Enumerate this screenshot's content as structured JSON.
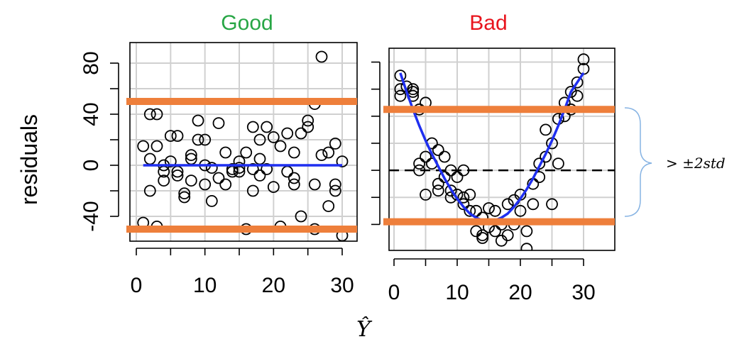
{
  "ylabel": "residuals",
  "xlabel": "Ŷ",
  "annotation": "> ±2std",
  "colors": {
    "good": "#27a645",
    "bad": "#e8141d",
    "band": "#ee7f3b",
    "fit": "#1f2ff0",
    "grid": "#d0d0d0"
  },
  "chart_data": [
    {
      "type": "scatter",
      "title": "Good",
      "xlim": [
        0,
        30
      ],
      "ylim": [
        -55,
        85
      ],
      "x_ticks": [
        "0",
        "10",
        "20",
        "30"
      ],
      "y_ticks": [
        "-40",
        "0",
        "40",
        "80"
      ],
      "y_tick_values": [
        -40,
        0,
        40,
        80
      ],
      "y_minor_ticks": [
        -20,
        20,
        60
      ],
      "bands": [
        50,
        -50
      ],
      "fit": {
        "x": [
          1,
          30
        ],
        "y": [
          0,
          0
        ]
      },
      "points": [
        [
          1,
          -45
        ],
        [
          1,
          15
        ],
        [
          2,
          40
        ],
        [
          2,
          5
        ],
        [
          2,
          -20
        ],
        [
          3,
          40
        ],
        [
          3,
          -48
        ],
        [
          3,
          15
        ],
        [
          4,
          -5
        ],
        [
          4,
          0
        ],
        [
          4,
          -12
        ],
        [
          5,
          23
        ],
        [
          5,
          3
        ],
        [
          6,
          23
        ],
        [
          6,
          -5
        ],
        [
          6,
          -8
        ],
        [
          7,
          -25
        ],
        [
          7,
          -22
        ],
        [
          8,
          5
        ],
        [
          8,
          8
        ],
        [
          8,
          -12
        ],
        [
          9,
          35
        ],
        [
          9,
          20
        ],
        [
          10,
          20
        ],
        [
          10,
          0
        ],
        [
          10,
          -15
        ],
        [
          11,
          -28
        ],
        [
          11,
          -2
        ],
        [
          12,
          33
        ],
        [
          12,
          -10
        ],
        [
          13,
          10
        ],
        [
          13,
          -15
        ],
        [
          14,
          -5
        ],
        [
          14,
          -3
        ],
        [
          15,
          3
        ],
        [
          15,
          -5
        ],
        [
          15,
          -2
        ],
        [
          16,
          -50
        ],
        [
          16,
          10
        ],
        [
          17,
          -20
        ],
        [
          17,
          30
        ],
        [
          17,
          -3
        ],
        [
          18,
          20
        ],
        [
          18,
          5
        ],
        [
          18,
          -8
        ],
        [
          19,
          -3
        ],
        [
          19,
          30
        ],
        [
          20,
          22
        ],
        [
          20,
          -17
        ],
        [
          21,
          15
        ],
        [
          21,
          -48
        ],
        [
          22,
          25
        ],
        [
          22,
          -5
        ],
        [
          23,
          10
        ],
        [
          23,
          -10
        ],
        [
          23,
          -15
        ],
        [
          24,
          25
        ],
        [
          24,
          -40
        ],
        [
          25,
          30
        ],
        [
          25,
          35
        ],
        [
          26,
          48
        ],
        [
          26,
          -50
        ],
        [
          26,
          -15
        ],
        [
          27,
          85
        ],
        [
          27,
          8
        ],
        [
          28,
          -32
        ],
        [
          28,
          10
        ],
        [
          29,
          -15
        ],
        [
          29,
          -20
        ],
        [
          29,
          17
        ],
        [
          30,
          -55
        ],
        [
          30,
          3
        ]
      ]
    },
    {
      "type": "scatter",
      "title": "Bad",
      "xlim": [
        0,
        30
      ],
      "ylim": [
        -55,
        85
      ],
      "x_ticks": [
        "0",
        "10",
        "20",
        "30"
      ],
      "y_ticks": [],
      "y_tick_values": [
        -40,
        0,
        40,
        80
      ],
      "y_minor_ticks": [
        -20,
        20,
        60
      ],
      "bands": [
        45,
        -38
      ],
      "zero_line": true,
      "fit": {
        "x": [
          1,
          2,
          3,
          4,
          5,
          6,
          7,
          8,
          9,
          10,
          11,
          12,
          13,
          14,
          15,
          16,
          17,
          18,
          19,
          20,
          21,
          22,
          23,
          24,
          25,
          26,
          27,
          28,
          29,
          30
        ],
        "y": [
          72,
          58,
          45,
          33,
          22,
          12,
          3,
          -6,
          -14,
          -21,
          -27,
          -32,
          -35,
          -37,
          -38,
          -37,
          -35,
          -32,
          -27,
          -21,
          -14,
          -6,
          3,
          12,
          22,
          33,
          45,
          58,
          65,
          72
        ]
      },
      "points": [
        [
          1,
          70
        ],
        [
          1,
          60
        ],
        [
          1,
          55
        ],
        [
          2,
          62
        ],
        [
          3,
          58
        ],
        [
          3,
          60
        ],
        [
          3,
          55
        ],
        [
          4,
          5
        ],
        [
          4,
          0
        ],
        [
          4,
          45
        ],
        [
          5,
          50
        ],
        [
          5,
          10
        ],
        [
          5,
          -18
        ],
        [
          6,
          20
        ],
        [
          6,
          5
        ],
        [
          7,
          15
        ],
        [
          7,
          -10
        ],
        [
          7,
          -15
        ],
        [
          8,
          10
        ],
        [
          8,
          -5
        ],
        [
          9,
          0
        ],
        [
          9,
          -15
        ],
        [
          9,
          -20
        ],
        [
          10,
          -18
        ],
        [
          10,
          -5
        ],
        [
          11,
          -20
        ],
        [
          11,
          -25
        ],
        [
          11,
          0
        ],
        [
          12,
          -18
        ],
        [
          12,
          -30
        ],
        [
          13,
          -30
        ],
        [
          13,
          -45
        ],
        [
          14,
          -48
        ],
        [
          14,
          -50
        ],
        [
          14,
          -35
        ],
        [
          15,
          -28
        ],
        [
          15,
          -42
        ],
        [
          16,
          -30
        ],
        [
          16,
          -45
        ],
        [
          17,
          -52
        ],
        [
          17,
          -40
        ],
        [
          18,
          -48
        ],
        [
          18,
          -25
        ],
        [
          19,
          -40
        ],
        [
          19,
          -22
        ],
        [
          20,
          -18
        ],
        [
          20,
          -30
        ],
        [
          21,
          -45
        ],
        [
          21,
          -58
        ],
        [
          22,
          -10
        ],
        [
          22,
          -25
        ],
        [
          23,
          5
        ],
        [
          23,
          -5
        ],
        [
          24,
          10
        ],
        [
          24,
          30
        ],
        [
          25,
          20
        ],
        [
          25,
          -25
        ],
        [
          26,
          38
        ],
        [
          26,
          5
        ],
        [
          27,
          50
        ],
        [
          27,
          40
        ],
        [
          28,
          58
        ],
        [
          28,
          45
        ],
        [
          29,
          55
        ],
        [
          29,
          65
        ],
        [
          30,
          75
        ],
        [
          30,
          82
        ]
      ]
    }
  ]
}
